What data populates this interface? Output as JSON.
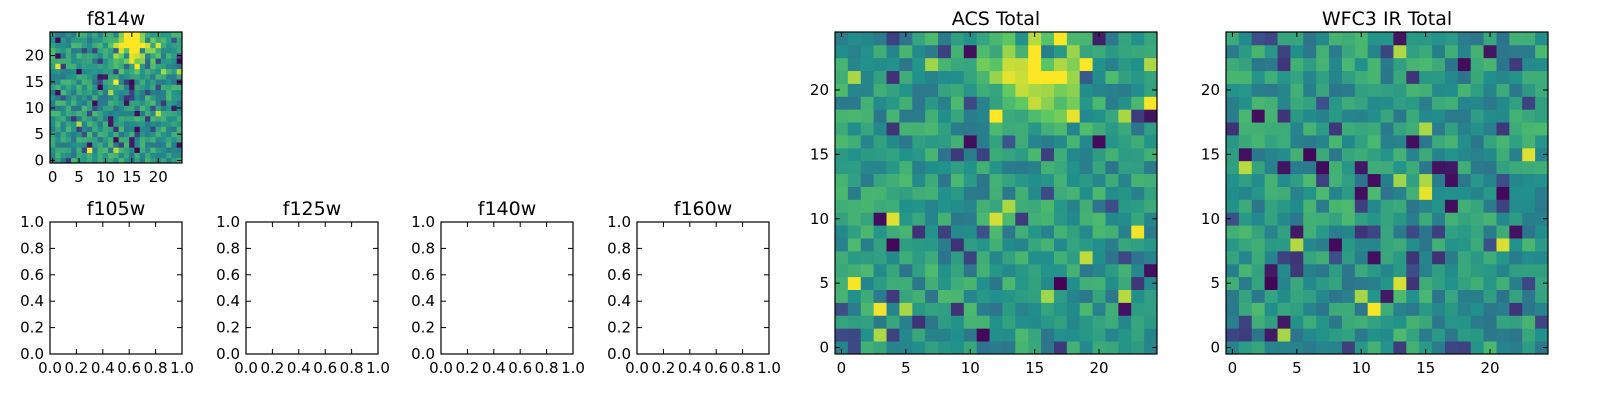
{
  "chart_data": [
    {
      "type": "heatmap",
      "title": "f814w",
      "size": 25,
      "xlim": [
        -0.5,
        24.5
      ],
      "ylim": [
        -0.5,
        24.5
      ],
      "xticks": [
        0,
        5,
        10,
        15,
        20
      ],
      "yticks": [
        0,
        5,
        10,
        15,
        20
      ],
      "colormap": "viridis",
      "hotspots": [
        {
          "x": 15,
          "y": 22,
          "amp": 0.6,
          "sigma": 2.5
        }
      ],
      "seed": 7
    },
    {
      "type": "heatmap",
      "title": "f105w",
      "empty": true,
      "xlim": [
        0.0,
        1.0
      ],
      "ylim": [
        0.0,
        1.0
      ],
      "xticks": [
        "0.0",
        "0.2",
        "0.4",
        "0.6",
        "0.8",
        "1.0"
      ],
      "yticks": [
        "0.0",
        "0.2",
        "0.4",
        "0.6",
        "0.8",
        "1.0"
      ]
    },
    {
      "type": "heatmap",
      "title": "f125w",
      "empty": true,
      "xlim": [
        0.0,
        1.0
      ],
      "ylim": [
        0.0,
        1.0
      ],
      "xticks": [
        "0.0",
        "0.2",
        "0.4",
        "0.6",
        "0.8",
        "1.0"
      ],
      "yticks": [
        "0.0",
        "0.2",
        "0.4",
        "0.6",
        "0.8",
        "1.0"
      ]
    },
    {
      "type": "heatmap",
      "title": "f140w",
      "empty": true,
      "xlim": [
        0.0,
        1.0
      ],
      "ylim": [
        0.0,
        1.0
      ],
      "xticks": [
        "0.0",
        "0.2",
        "0.4",
        "0.6",
        "0.8",
        "1.0"
      ],
      "yticks": [
        "0.0",
        "0.2",
        "0.4",
        "0.6",
        "0.8",
        "1.0"
      ]
    },
    {
      "type": "heatmap",
      "title": "f160w",
      "empty": true,
      "xlim": [
        0.0,
        1.0
      ],
      "ylim": [
        0.0,
        1.0
      ],
      "xticks": [
        "0.0",
        "0.2",
        "0.4",
        "0.6",
        "0.8",
        "1.0"
      ],
      "yticks": [
        "0.0",
        "0.2",
        "0.4",
        "0.6",
        "0.8",
        "1.0"
      ]
    },
    {
      "type": "heatmap",
      "title": "ACS Total",
      "size": 25,
      "xlim": [
        -0.5,
        24.5
      ],
      "ylim": [
        -0.5,
        24.5
      ],
      "xticks": [
        0,
        5,
        10,
        15,
        20
      ],
      "yticks": [
        0,
        5,
        10,
        15,
        20
      ],
      "colormap": "viridis",
      "hotspots": [
        {
          "x": 15,
          "y": 21.5,
          "amp": 0.6,
          "sigma": 2.2
        }
      ],
      "seed": 11
    },
    {
      "type": "heatmap",
      "title": "WFC3 IR Total",
      "size": 25,
      "xlim": [
        -0.5,
        24.5
      ],
      "ylim": [
        -0.5,
        24.5
      ],
      "xticks": [
        0,
        5,
        10,
        15,
        20
      ],
      "yticks": [
        0,
        5,
        10,
        15,
        20
      ],
      "colormap": "viridis",
      "hotspots": [],
      "seed": 23
    }
  ]
}
